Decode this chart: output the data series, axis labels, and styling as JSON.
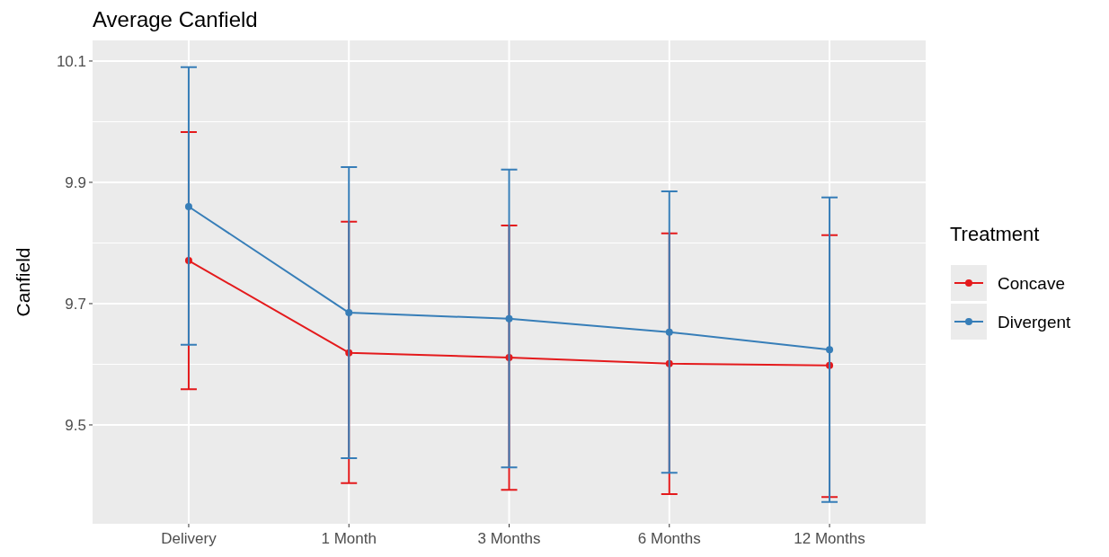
{
  "chart_data": {
    "type": "line",
    "title": "Average Canfield",
    "ylabel": "Canfield",
    "legend_title": "Treatment",
    "categories": [
      "Delivery",
      "1 Month",
      "3 Months",
      "6 Months",
      "12 Months"
    ],
    "series": [
      {
        "name": "Concave",
        "color": "#e41a1c",
        "values": [
          9.771,
          9.619,
          9.611,
          9.601,
          9.598
        ],
        "errors": [
          [
            9.559,
            9.983
          ],
          [
            9.404,
            9.835
          ],
          [
            9.393,
            9.829
          ],
          [
            9.386,
            9.816
          ],
          [
            9.381,
            9.813
          ]
        ]
      },
      {
        "name": "Divergent",
        "color": "#377eb8",
        "values": [
          9.86,
          9.685,
          9.675,
          9.653,
          9.624
        ],
        "errors": [
          [
            9.632,
            10.09
          ],
          [
            9.445,
            9.925
          ],
          [
            9.43,
            9.921
          ],
          [
            9.421,
            9.885
          ],
          [
            9.373,
            9.875
          ]
        ]
      }
    ],
    "ylim": [
      9.337,
      10.134
    ],
    "yticks": [
      9.5,
      {
        "value": 9.6,
        "label": null
      },
      9.7,
      {
        "value": 9.8,
        "label": null
      },
      9.9,
      {
        "value": 10,
        "label": null
      },
      10.1
    ],
    "grid": true,
    "legend": "right",
    "marker": "circle",
    "line_style": "solid"
  }
}
